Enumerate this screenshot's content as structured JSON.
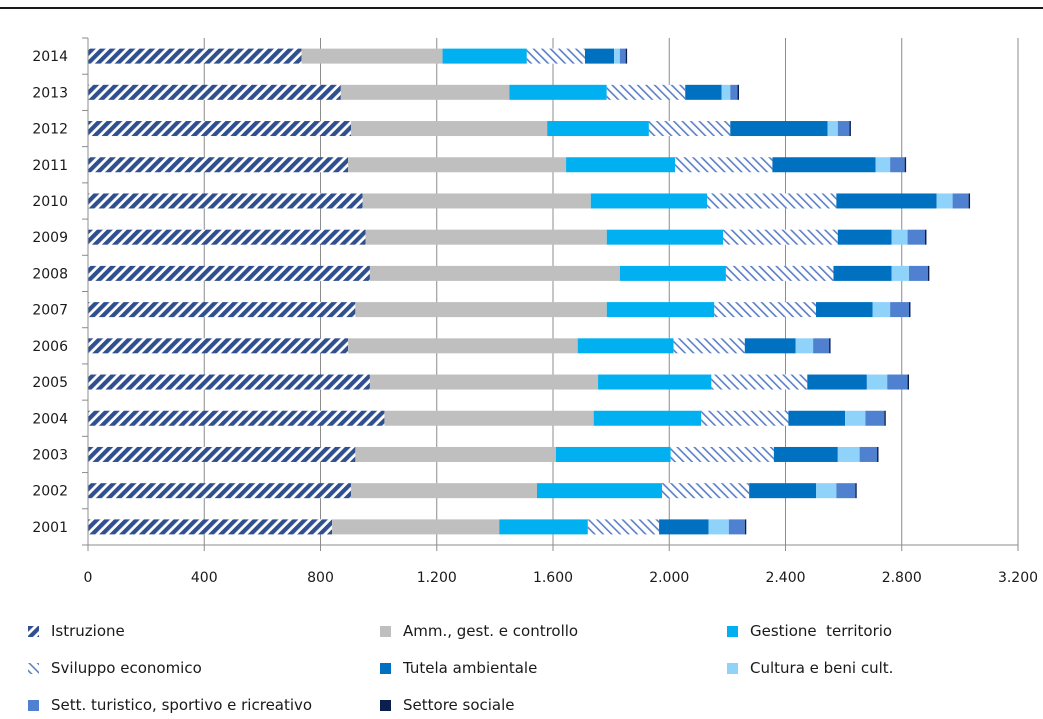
{
  "chart_data": {
    "type": "bar",
    "orientation": "horizontal",
    "stacked": true,
    "categories": [
      "2014",
      "2013",
      "2012",
      "2011",
      "2010",
      "2009",
      "2008",
      "2007",
      "2006",
      "2005",
      "2004",
      "2003",
      "2002",
      "2001"
    ],
    "xlim": [
      0,
      3200
    ],
    "xticks": [
      0,
      400,
      800,
      1200,
      1600,
      2000,
      2400,
      2800,
      3200
    ],
    "xtick_labels": [
      "0",
      "400",
      "800",
      "1.200",
      "1.600",
      "2.000",
      "2.400",
      "2.800",
      "3.200"
    ],
    "grid": "vertical",
    "legend_position": "bottom",
    "series": [
      {
        "name": "Istruzione",
        "color": "#2F4F8F",
        "pattern": "dense-diagonal",
        "values": [
          735,
          870,
          905,
          895,
          945,
          955,
          970,
          920,
          895,
          970,
          1020,
          920,
          905,
          840
        ]
      },
      {
        "name": "Amm., gest. e controllo",
        "color": "#BFBFBF",
        "pattern": "solid",
        "values": [
          485,
          580,
          675,
          750,
          785,
          830,
          860,
          865,
          790,
          785,
          720,
          690,
          640,
          575
        ]
      },
      {
        "name": "Gestione  territorio",
        "color": "#00B0F0",
        "pattern": "solid",
        "values": [
          290,
          335,
          350,
          375,
          400,
          400,
          365,
          370,
          330,
          390,
          370,
          395,
          430,
          305
        ]
      },
      {
        "name": "Sviluppo economico",
        "color": "#5B7FC7",
        "pattern": "light-diagonal",
        "values": [
          200,
          270,
          280,
          335,
          445,
          395,
          370,
          350,
          245,
          330,
          300,
          355,
          300,
          245
        ]
      },
      {
        "name": "Tutela ambientale",
        "color": "#0070C0",
        "pattern": "solid",
        "values": [
          100,
          125,
          335,
          355,
          345,
          185,
          200,
          195,
          175,
          205,
          195,
          220,
          230,
          170
        ]
      },
      {
        "name": "Cultura e beni cult.",
        "color": "#8FD3FA",
        "pattern": "solid",
        "values": [
          20,
          30,
          35,
          50,
          55,
          55,
          60,
          60,
          60,
          70,
          70,
          75,
          70,
          70
        ]
      },
      {
        "name": "Sett. turistico, sportivo e ricreativo",
        "color": "#4F81D0",
        "pattern": "solid",
        "values": [
          20,
          25,
          40,
          50,
          55,
          60,
          65,
          65,
          55,
          70,
          65,
          60,
          65,
          55
        ]
      },
      {
        "name": "Settore sociale",
        "color": "#0B1F4F",
        "pattern": "solid",
        "values": [
          5,
          5,
          5,
          5,
          5,
          5,
          5,
          5,
          5,
          5,
          5,
          5,
          5,
          5
        ]
      }
    ]
  }
}
